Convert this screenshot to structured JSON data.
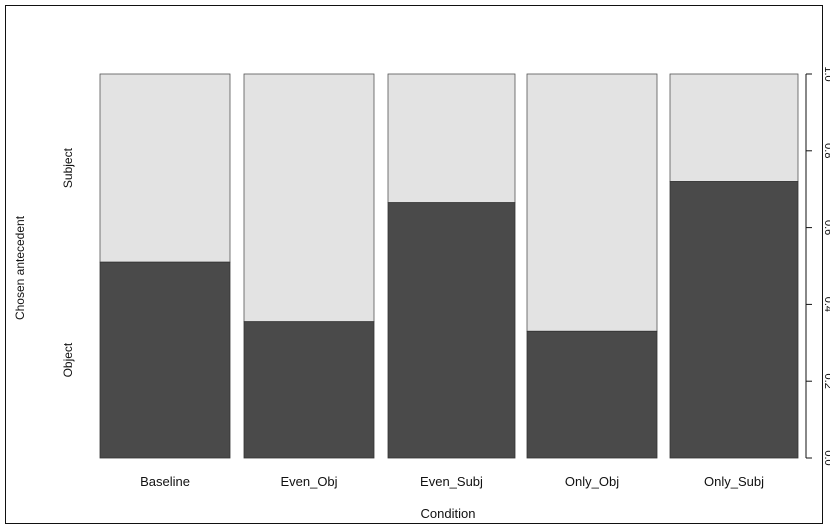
{
  "chart_data": {
    "type": "bar",
    "subtype": "stacked-proportion (spineplot)",
    "xlabel": "Condition",
    "ylabel": "Chosen antecedent",
    "categories": [
      "Baseline",
      "Even_Obj",
      "Even_Subj",
      "Only_Obj",
      "Only_Subj"
    ],
    "series": [
      {
        "name": "Object",
        "values": [
          0.51,
          0.355,
          0.665,
          0.33,
          0.72
        ],
        "color": "#4a4a4a"
      },
      {
        "name": "Subject",
        "values": [
          0.49,
          0.645,
          0.335,
          0.67,
          0.28
        ],
        "color": "#e3e3e3"
      }
    ],
    "ylim": [
      0,
      1
    ],
    "right_axis_ticks": [
      "0.0",
      "0.2",
      "0.4",
      "0.6",
      "0.8",
      "1.0"
    ],
    "grid": false,
    "legend": "none"
  }
}
